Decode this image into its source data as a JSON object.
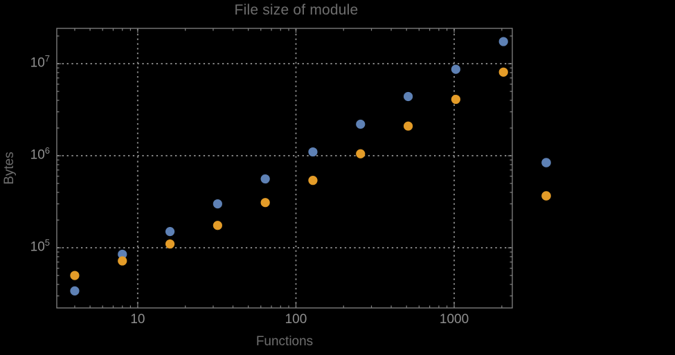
{
  "chart_data": {
    "type": "scatter",
    "title": "File size of module",
    "xlabel": "Functions",
    "ylabel": "Bytes",
    "x_scale": "log",
    "y_scale": "log",
    "xlim": [
      3.08,
      2330
    ],
    "ylim": [
      22200,
      24200000
    ],
    "x": [
      4,
      8,
      16,
      32,
      64,
      128,
      256,
      512,
      1024,
      2048
    ],
    "series": [
      {
        "name": "series-1",
        "color": "#5E81B5",
        "values": [
          34000,
          85000,
          150000,
          300000,
          560000,
          1100000,
          2200000,
          4400000,
          8700000,
          17400000
        ]
      },
      {
        "name": "series-2",
        "color": "#E49C28",
        "values": [
          50000,
          72000,
          110000,
          175000,
          310000,
          540000,
          1050000,
          2100000,
          4100000,
          8100000
        ]
      }
    ],
    "x_ticks": [
      {
        "value": 10,
        "label": "10"
      },
      {
        "value": 100,
        "label": "100"
      },
      {
        "value": 1000,
        "label": "1000"
      }
    ],
    "y_ticks": [
      {
        "value": 100000,
        "label_base": "10",
        "label_exp": "5"
      },
      {
        "value": 1000000,
        "label_base": "10",
        "label_exp": "6"
      },
      {
        "value": 10000000,
        "label_base": "10",
        "label_exp": "7"
      }
    ],
    "grid": {
      "style": "dotted",
      "x_values": [
        10,
        100,
        1000
      ],
      "y_values": [
        100000,
        1000000,
        10000000
      ]
    },
    "legend": {
      "position": "right-outside",
      "markers": [
        {
          "series": "series-1",
          "color": "#5E81B5",
          "label": ""
        },
        {
          "series": "series-2",
          "color": "#E49C28",
          "label": ""
        }
      ]
    }
  },
  "colors": {
    "background": "#000000",
    "frame": "#848484",
    "grid": "#848484",
    "tick_mark": "#848484",
    "title_text": "#6e6e6e",
    "axis_label_text": "#6e6e6e",
    "tick_label_text": "#8f8f8f",
    "series_1": "#5E81B5",
    "series_2": "#E49C28"
  }
}
